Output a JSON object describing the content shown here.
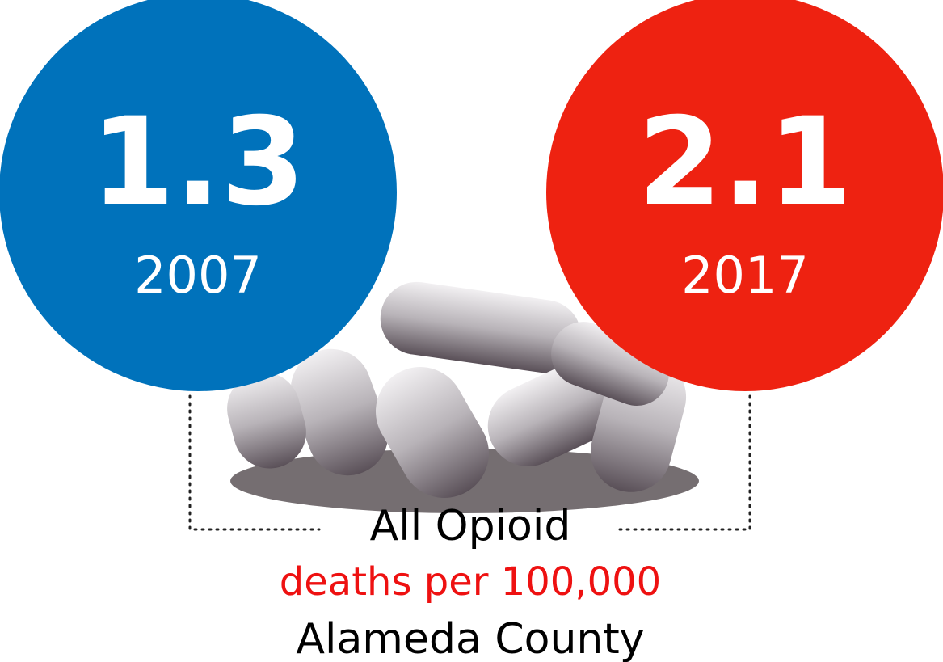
{
  "left": {
    "value": "1.3",
    "year": "2007"
  },
  "right": {
    "value": "2.1",
    "year": "2017"
  },
  "caption": {
    "line1": "All Opioid",
    "line2": "deaths per 100,000",
    "line3": "Alameda County"
  }
}
